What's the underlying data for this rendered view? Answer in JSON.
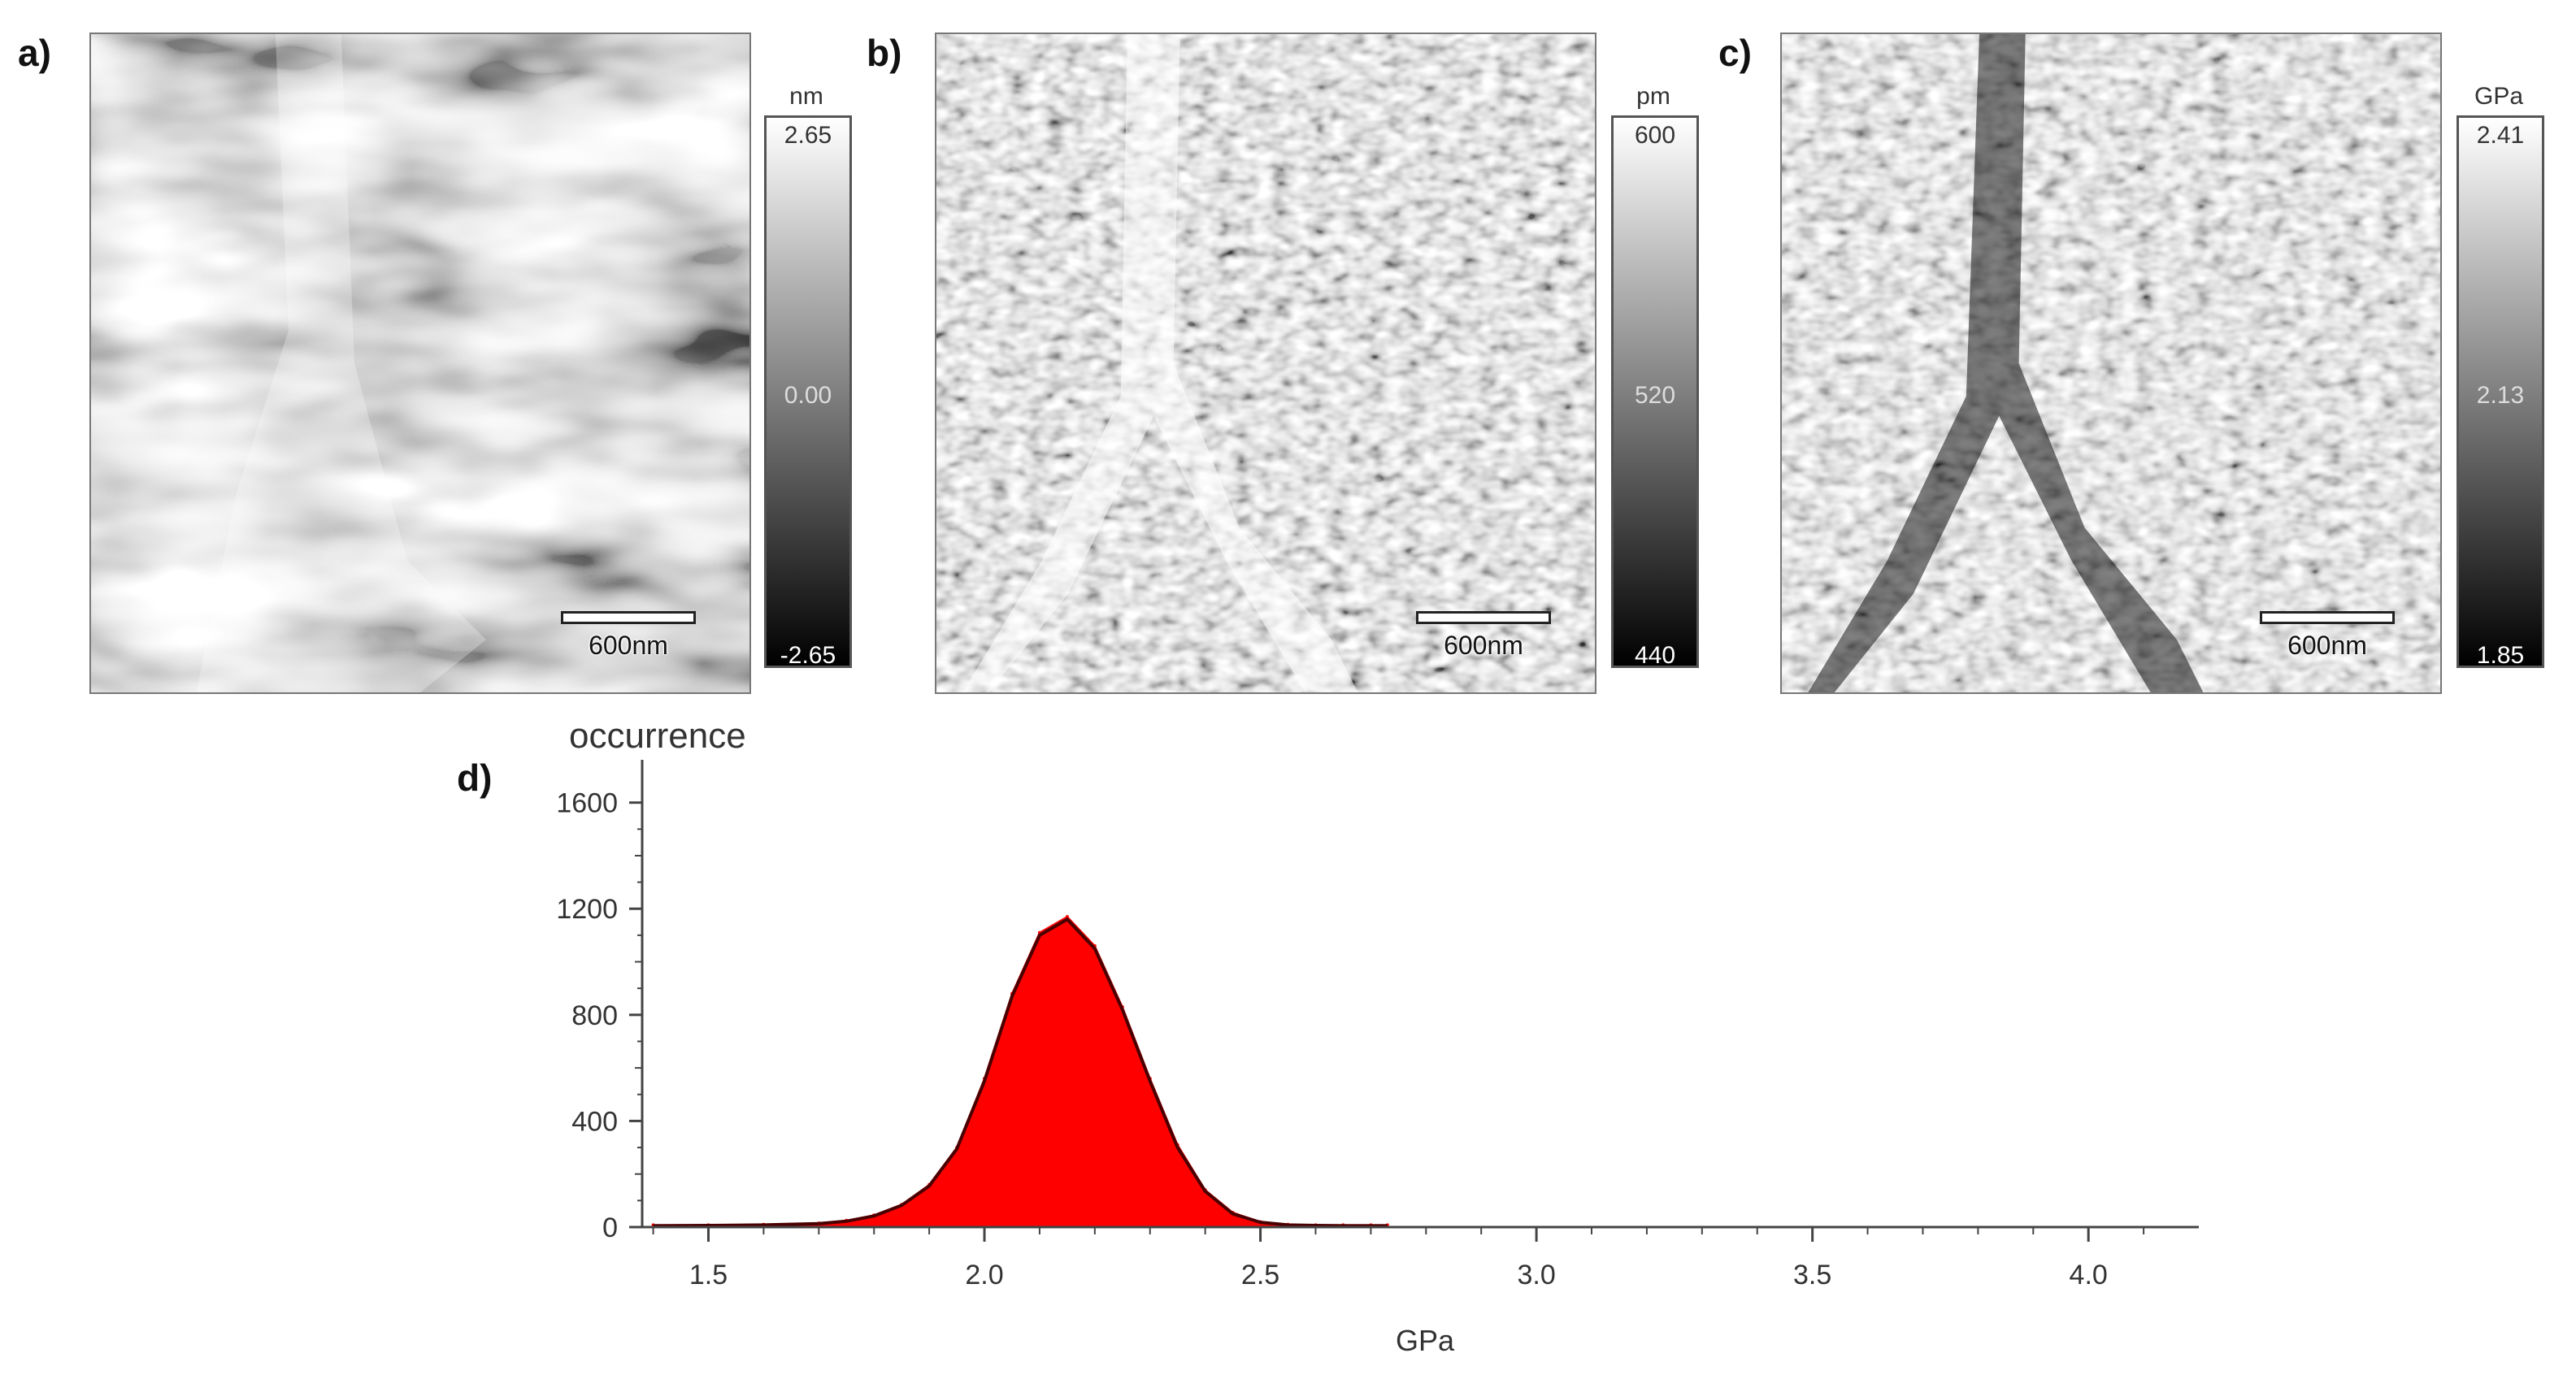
{
  "panels": [
    {
      "label": "a)",
      "unit": "nm",
      "cbar_max": "2.65",
      "cbar_mid": "0.00",
      "cbar_min": "-2.65",
      "scalebar": "600nm"
    },
    {
      "label": "b)",
      "unit": "pm",
      "cbar_max": "600",
      "cbar_mid": "520",
      "cbar_min": "440",
      "scalebar": "600nm"
    },
    {
      "label": "c)",
      "unit": "GPa",
      "cbar_max": "2.41",
      "cbar_mid": "2.13",
      "cbar_min": "1.85",
      "scalebar": "600nm"
    }
  ],
  "histogram": {
    "label": "d)"
  },
  "chart_data": {
    "type": "area",
    "title": "",
    "xlabel": "GPa",
    "ylabel": "occurrence",
    "xlim": [
      1.38,
      4.2
    ],
    "ylim": [
      0,
      1700
    ],
    "x_ticks": [
      "1.5",
      "2.0",
      "2.5",
      "3.0",
      "3.5",
      "4.0"
    ],
    "y_ticks": [
      "0",
      "400",
      "800",
      "1200",
      "1600"
    ],
    "series": [
      {
        "fill": "#ff0000",
        "x": [
          1.4,
          1.5,
          1.6,
          1.7,
          1.75,
          1.8,
          1.85,
          1.9,
          1.95,
          2.0,
          2.05,
          2.1,
          2.15,
          2.2,
          2.25,
          2.3,
          2.35,
          2.4,
          2.45,
          2.5,
          2.55,
          2.6,
          2.65,
          2.7,
          2.73
        ],
        "y": [
          8,
          8,
          10,
          15,
          25,
          45,
          85,
          160,
          300,
          560,
          880,
          1110,
          1170,
          1060,
          830,
          560,
          310,
          140,
          55,
          20,
          10,
          8,
          8,
          8,
          8
        ]
      }
    ],
    "fit_line": {
      "color": "#4a0000",
      "x": [
        1.4,
        1.5,
        1.6,
        1.7,
        1.75,
        1.8,
        1.85,
        1.9,
        1.95,
        2.0,
        2.05,
        2.1,
        2.15,
        2.2,
        2.25,
        2.3,
        2.35,
        2.4,
        2.45,
        2.5,
        2.55,
        2.6,
        2.65,
        2.7,
        2.73
      ],
      "y": [
        5,
        6,
        8,
        13,
        22,
        42,
        82,
        155,
        295,
        550,
        870,
        1100,
        1160,
        1050,
        820,
        550,
        300,
        135,
        50,
        18,
        8,
        6,
        5,
        5,
        5
      ]
    }
  }
}
